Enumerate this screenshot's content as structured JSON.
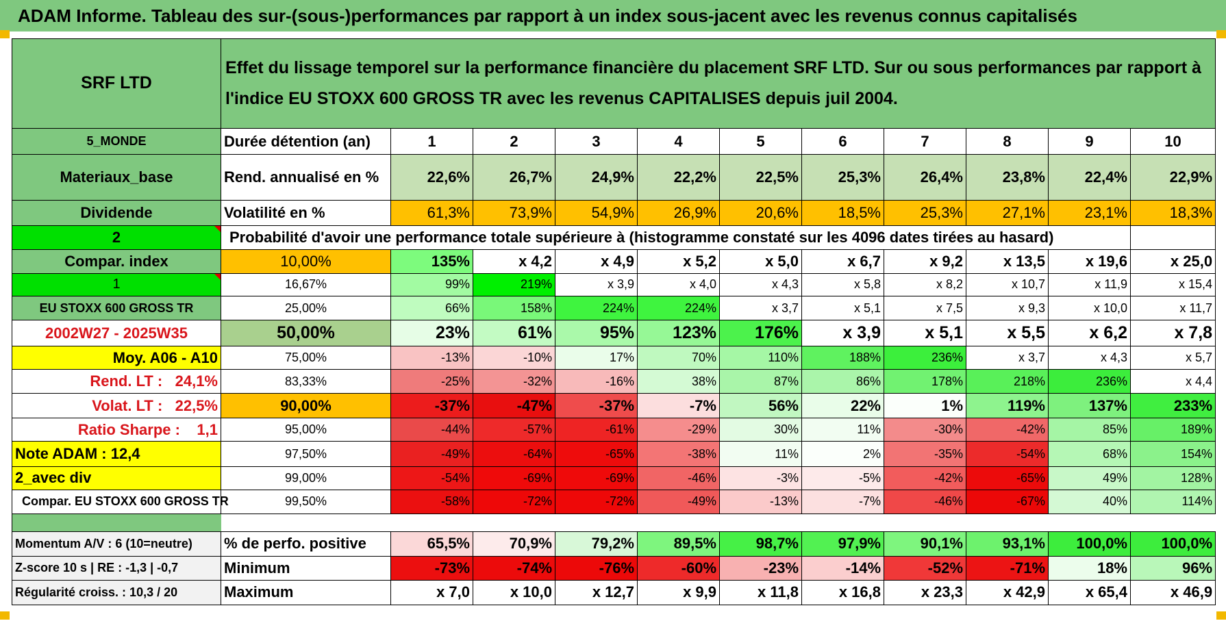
{
  "title": "ADAM Informe. Tableau des sur-(sous-)performances par rapport à un index sous-jacent avec les revenus connus capitalisés",
  "header": {
    "asset": "SRF LTD",
    "description": "Effet du lissage temporel sur la performance financière du placement SRF LTD. Sur ou sous performances par rapport à l'indice EU STOXX 600 GROSS TR avec les revenus CAPITALISES depuis juil 2004."
  },
  "rows_top": {
    "durations_label": "Durée détention (an)",
    "durations": [
      "1",
      "2",
      "3",
      "4",
      "5",
      "6",
      "7",
      "8",
      "9",
      "10"
    ],
    "returns_label": "Rend. annualisé en %",
    "returns": [
      "22,6%",
      "26,7%",
      "24,9%",
      "22,2%",
      "22,5%",
      "25,3%",
      "26,4%",
      "23,8%",
      "22,4%",
      "22,9%"
    ],
    "vol_label": "Volatilité en %",
    "volatility": [
      "61,3%",
      "73,9%",
      "54,9%",
      "26,9%",
      "20,6%",
      "18,5%",
      "25,3%",
      "27,1%",
      "23,1%",
      "18,3%"
    ]
  },
  "left_labels": {
    "region": "5_MONDE",
    "sector": "Materiaux_base",
    "dividend": "Dividende",
    "n2": "2",
    "compar_index": "Compar. index",
    "n1": "1",
    "index_name": "EU STOXX 600 GROSS TR",
    "period": "2002W27 - 2025W35",
    "moy": "Moy. A06 - A10",
    "rend_lt_label": "Rend. LT :",
    "rend_lt_value": "24,1%",
    "volat_lt_label": "Volat. LT :",
    "volat_lt_value": "22,5%",
    "sharpe_label": "Ratio Sharpe :",
    "sharpe_value": "1,1",
    "note_adam": "Note ADAM : 12,4",
    "avec_div": "2_avec div",
    "compar_full": "Compar. EU STOXX 600 GROSS TR"
  },
  "probability_heading": "Probabilité d'avoir une performance totale supérieure à (histogramme constaté sur les 4096 dates tirées au hasard)",
  "prob_rows": [
    {
      "p": "10,00%",
      "v": [
        "135%",
        "x 4,2",
        "x 4,9",
        "x 5,2",
        "x 5,0",
        "x 6,7",
        "x 9,2",
        "x 13,5",
        "x 19,6",
        "x 25,0"
      ]
    },
    {
      "p": "16,67%",
      "v": [
        "99%",
        "219%",
        "x 3,9",
        "x 4,0",
        "x 4,3",
        "x 5,8",
        "x 8,2",
        "x 10,7",
        "x 11,9",
        "x 15,4"
      ]
    },
    {
      "p": "25,00%",
      "v": [
        "66%",
        "158%",
        "224%",
        "224%",
        "x 3,7",
        "x 5,1",
        "x 7,5",
        "x 9,3",
        "x 10,0",
        "x 11,7"
      ]
    },
    {
      "p": "50,00%",
      "v": [
        "23%",
        "61%",
        "95%",
        "123%",
        "176%",
        "x 3,9",
        "x 5,1",
        "x 5,5",
        "x 6,2",
        "x 7,8"
      ]
    },
    {
      "p": "75,00%",
      "v": [
        "-13%",
        "-10%",
        "17%",
        "70%",
        "110%",
        "188%",
        "236%",
        "x 3,7",
        "x 4,3",
        "x 5,7"
      ]
    },
    {
      "p": "83,33%",
      "v": [
        "-25%",
        "-32%",
        "-16%",
        "38%",
        "87%",
        "86%",
        "178%",
        "218%",
        "236%",
        "x 4,4"
      ]
    },
    {
      "p": "90,00%",
      "v": [
        "-37%",
        "-47%",
        "-37%",
        "-7%",
        "56%",
        "22%",
        "1%",
        "119%",
        "137%",
        "233%"
      ]
    },
    {
      "p": "95,00%",
      "v": [
        "-44%",
        "-57%",
        "-61%",
        "-29%",
        "30%",
        "11%",
        "-30%",
        "-42%",
        "85%",
        "189%"
      ]
    },
    {
      "p": "97,50%",
      "v": [
        "-49%",
        "-64%",
        "-65%",
        "-38%",
        "11%",
        "2%",
        "-35%",
        "-54%",
        "68%",
        "154%"
      ]
    },
    {
      "p": "99,00%",
      "v": [
        "-54%",
        "-69%",
        "-69%",
        "-46%",
        "-3%",
        "-5%",
        "-42%",
        "-65%",
        "49%",
        "128%"
      ]
    },
    {
      "p": "99,50%",
      "v": [
        "-58%",
        "-72%",
        "-72%",
        "-49%",
        "-13%",
        "-7%",
        "-46%",
        "-67%",
        "40%",
        "114%"
      ]
    }
  ],
  "prob_colors": [
    [
      "#7dfb7d",
      "#ffffff",
      "#ffffff",
      "#ffffff",
      "#ffffff",
      "#ffffff",
      "#ffffff",
      "#ffffff",
      "#ffffff",
      "#ffffff"
    ],
    [
      "#a2fba2",
      "#00f000",
      "#ffffff",
      "#ffffff",
      "#ffffff",
      "#ffffff",
      "#ffffff",
      "#ffffff",
      "#ffffff",
      "#ffffff"
    ],
    [
      "#bffcbf",
      "#79f879",
      "#3ff43f",
      "#3ff43f",
      "#ffffff",
      "#ffffff",
      "#ffffff",
      "#ffffff",
      "#ffffff",
      "#ffffff"
    ],
    [
      "#e6fde6",
      "#c3fbc3",
      "#aaf9aa",
      "#96f896",
      "#4cf24c",
      "#ffffff",
      "#ffffff",
      "#ffffff",
      "#ffffff",
      "#ffffff"
    ],
    [
      "#f9c3c3",
      "#fbd6d6",
      "#eafdea",
      "#bff9bf",
      "#a5f7a5",
      "#5ff25f",
      "#3cef3c",
      "#ffffff",
      "#ffffff",
      "#ffffff"
    ],
    [
      "#ef7b7b",
      "#f39494",
      "#f8baba",
      "#d4fad4",
      "#a9f5a9",
      "#aaf5aa",
      "#71f271",
      "#59f059",
      "#3ced3c",
      "#ffffff"
    ],
    [
      "#ec1c1c",
      "#e80f0f",
      "#ef4c4c",
      "#fcdede",
      "#c1f7c1",
      "#e9fde9",
      "#fbfffb",
      "#8ef38e",
      "#7ef17e",
      "#40ee40"
    ],
    [
      "#ea4a4a",
      "#ee2a2a",
      "#ee2424",
      "#f58d8d",
      "#e3fbe3",
      "#f2fdf2",
      "#f38b8b",
      "#f06868",
      "#a5f5a5",
      "#67f067"
    ],
    [
      "#ea2121",
      "#ec0e0e",
      "#ee0c0c",
      "#f37575",
      "#f2fdf2",
      "#fbfffb",
      "#f27474",
      "#ec2b2b",
      "#b5f7b5",
      "#8bf28b"
    ],
    [
      "#ed1717",
      "#ef0a0a",
      "#ef0a0a",
      "#f16565",
      "#fde3e3",
      "#fdeaea",
      "#f25c5c",
      "#ec0b0b",
      "#c8f8c8",
      "#a2f4a2"
    ],
    [
      "#eb1010",
      "#ee0808",
      "#ee0808",
      "#f05959",
      "#fbcaca",
      "#fce0e0",
      "#f04848",
      "#ec0808",
      "#d4f9d4",
      "#b0f5b0"
    ]
  ],
  "bottom_rows": [
    {
      "left": "Momentum A/V : 6 (10=neutre)",
      "label": "% de perfo. positive",
      "v": [
        "65,5%",
        "70,9%",
        "79,2%",
        "89,5%",
        "98,7%",
        "97,9%",
        "90,1%",
        "93,1%",
        "100,0%",
        "100,0%"
      ],
      "colors": [
        "#fbd8d8",
        "#fdebeb",
        "#d8f8d8",
        "#7ef57e",
        "#46f046",
        "#52f152",
        "#7ef57e",
        "#6df26d",
        "#3ded3d",
        "#3ded3d"
      ]
    },
    {
      "left": "Z-score 10 s | RE : -1,3 | -0,7",
      "label": "Minimum",
      "v": [
        "-73%",
        "-74%",
        "-76%",
        "-60%",
        "-23%",
        "-14%",
        "-52%",
        "-71%",
        "18%",
        "96%"
      ],
      "colors": [
        "#ec0f0f",
        "#ec0b0b",
        "#ec0909",
        "#ee2a2a",
        "#f8b1b1",
        "#fbcece",
        "#f03838",
        "#ec1414",
        "#ecfdec",
        "#b9f7b9"
      ]
    },
    {
      "left": "Régularité croiss. : 10,3 / 20",
      "label": "Maximum",
      "v": [
        "x 7,0",
        "x 10,0",
        "x 12,7",
        "x 9,9",
        "x 11,8",
        "x 16,8",
        "x 23,3",
        "x 42,9",
        "x 65,4",
        "x 46,9"
      ],
      "colors": [
        "#ffffff",
        "#ffffff",
        "#ffffff",
        "#ffffff",
        "#ffffff",
        "#ffffff",
        "#ffffff",
        "#ffffff",
        "#ffffff",
        "#ffffff"
      ]
    }
  ],
  "colors": {
    "banner": "#7fc87f",
    "header_green": "#7fc87f",
    "returns_bg": "#c6e0b4",
    "vol_bg": "#ffc000",
    "bright_green": "#00e000",
    "yellow": "#ffff00",
    "accent_red": "#d9151b"
  }
}
